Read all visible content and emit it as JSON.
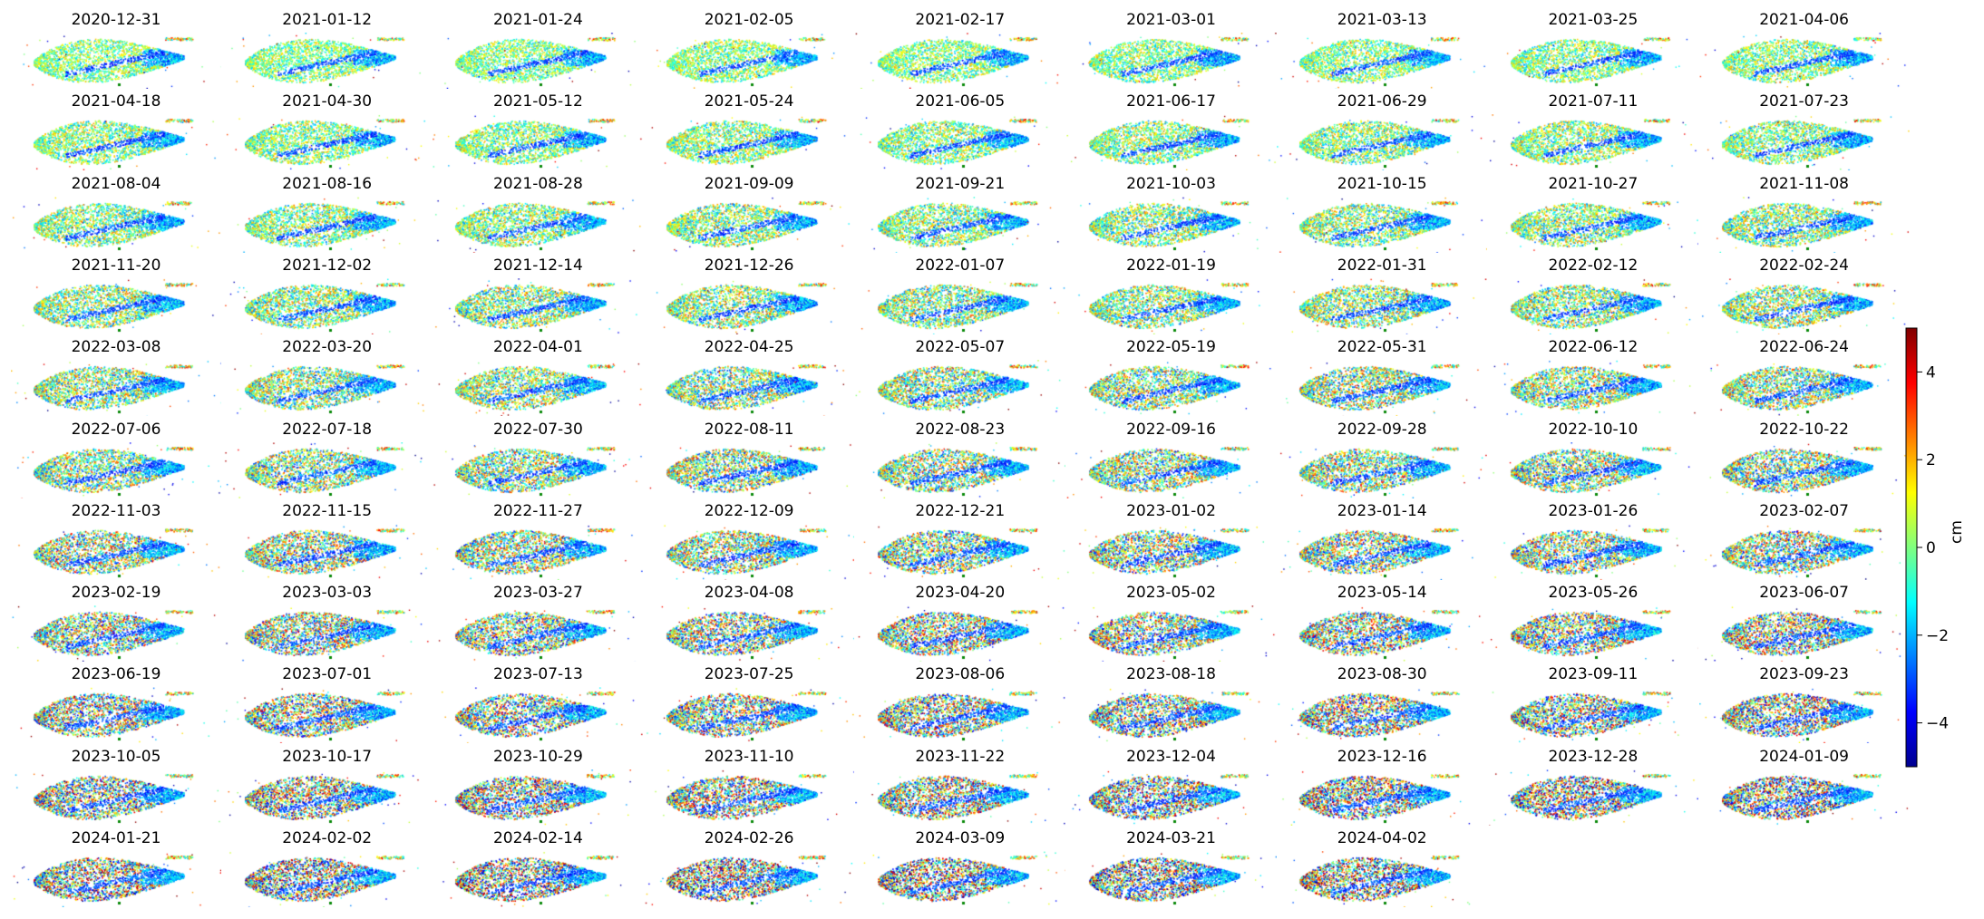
{
  "chart_data": {
    "type": "heatmap",
    "colormap": "jet",
    "value_unit": "cm",
    "vmin": -5,
    "vmax": 5,
    "colorbar": {
      "label": "cm",
      "ticks": [
        4,
        2,
        0,
        -2,
        -4
      ]
    },
    "panels": [
      "2020-12-31",
      "2021-01-12",
      "2021-01-24",
      "2021-02-05",
      "2021-02-17",
      "2021-03-01",
      "2021-03-13",
      "2021-03-25",
      "2021-04-06",
      "2021-04-18",
      "2021-04-30",
      "2021-05-12",
      "2021-05-24",
      "2021-06-05",
      "2021-06-17",
      "2021-06-29",
      "2021-07-11",
      "2021-07-23",
      "2021-08-04",
      "2021-08-16",
      "2021-08-28",
      "2021-09-09",
      "2021-09-21",
      "2021-10-03",
      "2021-10-15",
      "2021-10-27",
      "2021-11-08",
      "2021-11-20",
      "2021-12-02",
      "2021-12-14",
      "2021-12-26",
      "2022-01-07",
      "2022-01-19",
      "2022-01-31",
      "2022-02-12",
      "2022-02-24",
      "2022-03-08",
      "2022-03-20",
      "2022-04-01",
      "2022-04-25",
      "2022-05-07",
      "2022-05-19",
      "2022-05-31",
      "2022-06-12",
      "2022-06-24",
      "2022-07-06",
      "2022-07-18",
      "2022-07-30",
      "2022-08-11",
      "2022-08-23",
      "2022-09-16",
      "2022-09-28",
      "2022-10-10",
      "2022-10-22",
      "2022-11-03",
      "2022-11-15",
      "2022-11-27",
      "2022-12-09",
      "2022-12-21",
      "2023-01-02",
      "2023-01-14",
      "2023-01-26",
      "2023-02-07",
      "2023-02-19",
      "2023-03-03",
      "2023-03-27",
      "2023-04-08",
      "2023-04-20",
      "2023-05-02",
      "2023-05-14",
      "2023-05-26",
      "2023-06-07",
      "2023-06-19",
      "2023-07-01",
      "2023-07-13",
      "2023-07-25",
      "2023-08-06",
      "2023-08-18",
      "2023-08-30",
      "2023-09-11",
      "2023-09-23",
      "2023-10-05",
      "2023-10-17",
      "2023-10-29",
      "2023-11-10",
      "2023-11-22",
      "2023-12-04",
      "2023-12-16",
      "2023-12-28",
      "2024-01-09",
      "2024-01-21",
      "2024-02-02",
      "2024-02-14",
      "2024-02-26",
      "2024-03-09",
      "2024-03-21",
      "2024-04-02"
    ]
  }
}
